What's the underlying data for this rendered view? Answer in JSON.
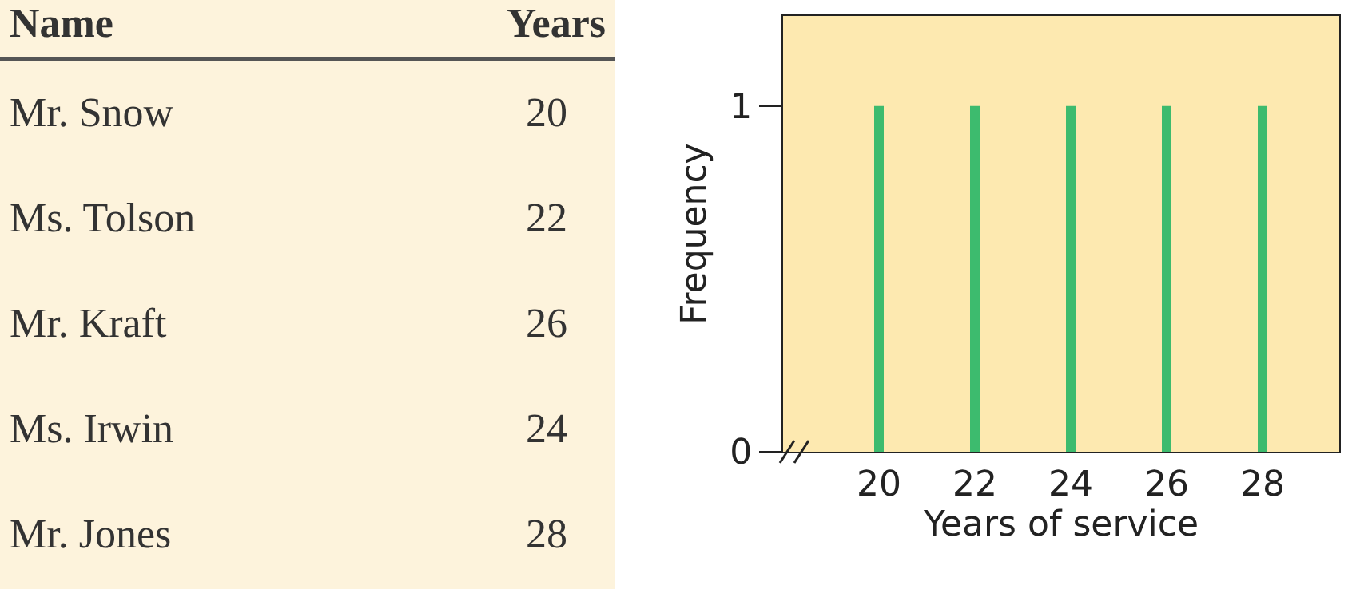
{
  "chart_data": [
    {
      "type": "other",
      "xlabel": "Name",
      "ylabel": "Years",
      "categories": [
        "Mr. Snow",
        "Ms. Tolson",
        "Mr. Kraft",
        "Ms. Irwin",
        "Mr. Jones"
      ],
      "values": [
        20,
        22,
        26,
        24,
        28
      ],
      "data_labels": true
    },
    {
      "type": "bar",
      "xlabel": "Years of service",
      "ylabel": "Frequency",
      "x": [
        20,
        22,
        24,
        26,
        28
      ],
      "values": [
        1,
        1,
        1,
        1,
        1
      ],
      "color": "#3dbb6e",
      "xlim": [
        18,
        29.6
      ],
      "xticks": [
        20,
        22,
        24,
        26,
        28
      ],
      "ylim": [
        0,
        1.26
      ],
      "yticks": [
        0,
        1
      ],
      "grid": false,
      "legend": false
    }
  ]
}
